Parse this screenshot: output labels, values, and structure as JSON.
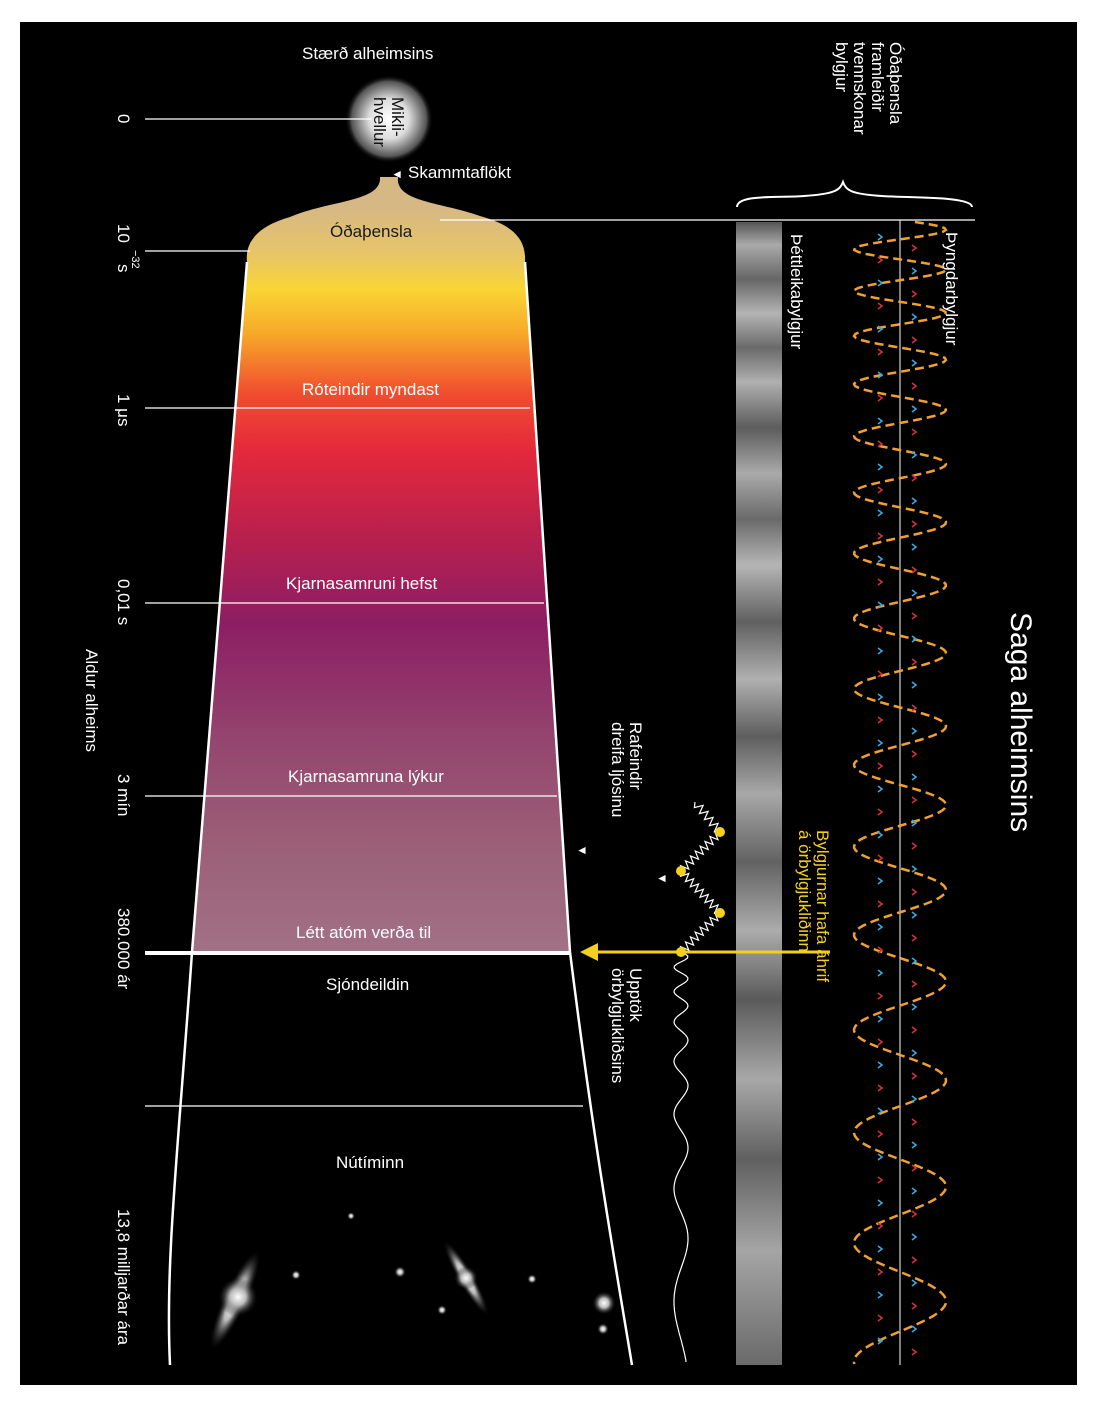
{
  "top_title": "Stærð alheimsins",
  "big_bang": {
    "line1": "Mikli-",
    "line2": "hvellur"
  },
  "quantum_label": "Skammtaflökt",
  "era_labels": {
    "inflation": "Óðaþensla",
    "particles": "Róteindir myndast",
    "fusion_start": "Kjarnasamruni  hefst",
    "fusion_end": "Kjarnasamruna lýkur",
    "atoms": "Létt atóm verða til",
    "horizon": "Sjóndeildin",
    "present": "Nútíminn"
  },
  "time_axis": {
    "title": "Aldur alheims",
    "ticks": {
      "t0": "0",
      "t32_base": "10",
      "t32_exp": "−32",
      "t32_unit": "s",
      "t1us": "1 μs",
      "t001": "0,01 s",
      "t3min": "3 mín",
      "t380k": "380.000 ár",
      "t13": "13,8 milljarðar ára"
    }
  },
  "right_side": {
    "title": "Saga alheimsins",
    "inflation_note": {
      "line1": "Óðaþensla",
      "line2": "framleiðir",
      "line3": "tvennskonar",
      "line4": "bylgjur"
    },
    "gravity_waves": "Þyngdarbylgjur",
    "density_waves": "Þéttleikabylgjur",
    "affect_note": {
      "line1": "Bylgjurnar hafa áhrif",
      "line2": "á örbylgjukliðinn"
    },
    "electrons": {
      "line1": "Rafeindir",
      "line2": "dreifa ljósinu"
    },
    "cmb_origin": {
      "line1": "Upptök",
      "line2": "örbylgjukliðsins"
    }
  },
  "colors": {
    "frame": "#000000",
    "accent": "#f5cf1e",
    "wave": "#f0a030"
  }
}
